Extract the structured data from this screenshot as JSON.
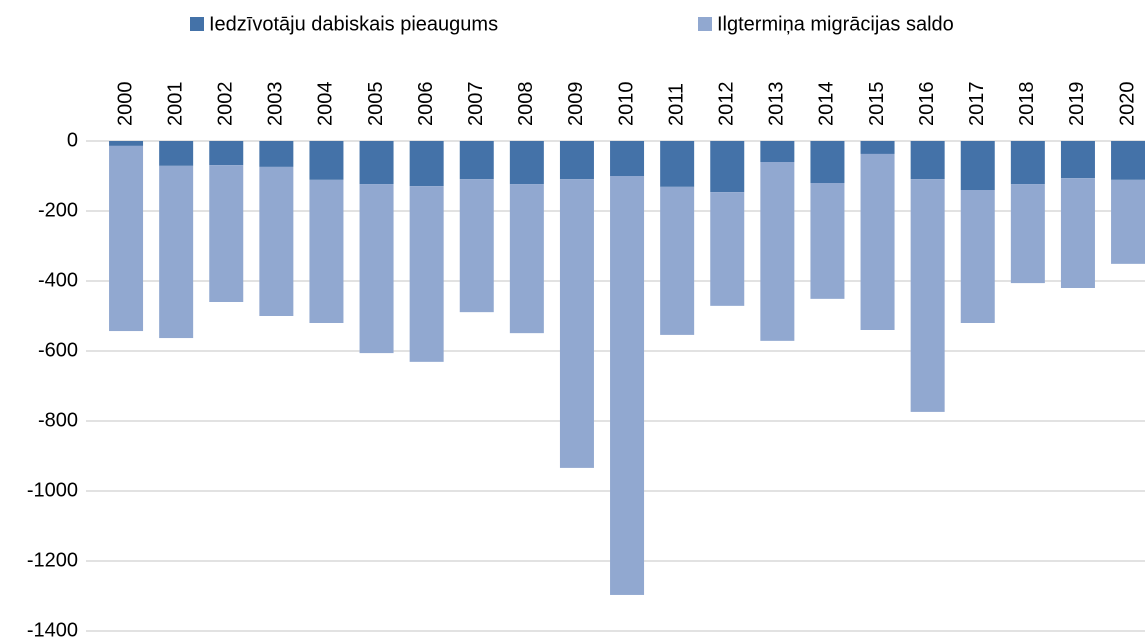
{
  "chart_data": {
    "type": "stacked_bar",
    "categories": [
      "2000",
      "2001",
      "2002",
      "2003",
      "2004",
      "2005",
      "2006",
      "2007",
      "2008",
      "2009",
      "2010",
      "2011",
      "2012",
      "2013",
      "2014",
      "2015",
      "2016",
      "2017",
      "2018",
      "2019",
      "2020"
    ],
    "series": [
      {
        "name": "Iedzīvotāju dabiskais pieaugums",
        "color": "#4472a8",
        "values": [
          -14,
          -71,
          -69,
          -74,
          -111,
          -123,
          -129,
          -109,
          -123,
          -109,
          -100,
          -131,
          -146,
          -60,
          -120,
          -37,
          -109,
          -140,
          -123,
          -106,
          -111
        ]
      },
      {
        "name": "Ilgtermiņa migrācijas saldo",
        "color": "#91a8d0",
        "values": [
          -529,
          -492,
          -391,
          -426,
          -409,
          -483,
          -502,
          -380,
          -426,
          -825,
          -1197,
          -423,
          -325,
          -511,
          -331,
          -503,
          -665,
          -380,
          -283,
          -314,
          -240
        ]
      }
    ],
    "ylim": [
      -1400,
      0
    ],
    "yticks": [
      0,
      -200,
      -400,
      -600,
      -800,
      -1000,
      -1200,
      -1400
    ],
    "grid": true
  }
}
